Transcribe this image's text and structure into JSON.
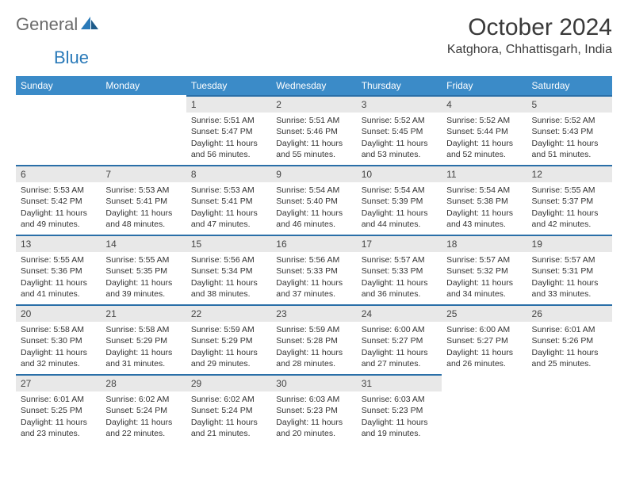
{
  "logo": {
    "word1": "General",
    "word2": "Blue"
  },
  "title": "October 2024",
  "location": "Katghora, Chhattisgarh, India",
  "colors": {
    "header_bg": "#3b8bc8",
    "header_text": "#ffffff",
    "daynum_bg": "#e8e8e8",
    "daynum_border": "#2a6fa8",
    "logo_gray": "#6a6a6a",
    "logo_blue": "#2a7ab9",
    "body_text": "#333333",
    "background": "#ffffff"
  },
  "fonts": {
    "title_size_pt": 22,
    "location_size_pt": 12,
    "th_size_pt": 9,
    "cell_size_pt": 8
  },
  "layout": {
    "columns": 7,
    "rows": 5,
    "first_day_column": 2
  },
  "weekdays": [
    "Sunday",
    "Monday",
    "Tuesday",
    "Wednesday",
    "Thursday",
    "Friday",
    "Saturday"
  ],
  "days": [
    {
      "n": 1,
      "sunrise": "5:51 AM",
      "sunset": "5:47 PM",
      "daylight": "11 hours and 56 minutes."
    },
    {
      "n": 2,
      "sunrise": "5:51 AM",
      "sunset": "5:46 PM",
      "daylight": "11 hours and 55 minutes."
    },
    {
      "n": 3,
      "sunrise": "5:52 AM",
      "sunset": "5:45 PM",
      "daylight": "11 hours and 53 minutes."
    },
    {
      "n": 4,
      "sunrise": "5:52 AM",
      "sunset": "5:44 PM",
      "daylight": "11 hours and 52 minutes."
    },
    {
      "n": 5,
      "sunrise": "5:52 AM",
      "sunset": "5:43 PM",
      "daylight": "11 hours and 51 minutes."
    },
    {
      "n": 6,
      "sunrise": "5:53 AM",
      "sunset": "5:42 PM",
      "daylight": "11 hours and 49 minutes."
    },
    {
      "n": 7,
      "sunrise": "5:53 AM",
      "sunset": "5:41 PM",
      "daylight": "11 hours and 48 minutes."
    },
    {
      "n": 8,
      "sunrise": "5:53 AM",
      "sunset": "5:41 PM",
      "daylight": "11 hours and 47 minutes."
    },
    {
      "n": 9,
      "sunrise": "5:54 AM",
      "sunset": "5:40 PM",
      "daylight": "11 hours and 46 minutes."
    },
    {
      "n": 10,
      "sunrise": "5:54 AM",
      "sunset": "5:39 PM",
      "daylight": "11 hours and 44 minutes."
    },
    {
      "n": 11,
      "sunrise": "5:54 AM",
      "sunset": "5:38 PM",
      "daylight": "11 hours and 43 minutes."
    },
    {
      "n": 12,
      "sunrise": "5:55 AM",
      "sunset": "5:37 PM",
      "daylight": "11 hours and 42 minutes."
    },
    {
      "n": 13,
      "sunrise": "5:55 AM",
      "sunset": "5:36 PM",
      "daylight": "11 hours and 41 minutes."
    },
    {
      "n": 14,
      "sunrise": "5:55 AM",
      "sunset": "5:35 PM",
      "daylight": "11 hours and 39 minutes."
    },
    {
      "n": 15,
      "sunrise": "5:56 AM",
      "sunset": "5:34 PM",
      "daylight": "11 hours and 38 minutes."
    },
    {
      "n": 16,
      "sunrise": "5:56 AM",
      "sunset": "5:33 PM",
      "daylight": "11 hours and 37 minutes."
    },
    {
      "n": 17,
      "sunrise": "5:57 AM",
      "sunset": "5:33 PM",
      "daylight": "11 hours and 36 minutes."
    },
    {
      "n": 18,
      "sunrise": "5:57 AM",
      "sunset": "5:32 PM",
      "daylight": "11 hours and 34 minutes."
    },
    {
      "n": 19,
      "sunrise": "5:57 AM",
      "sunset": "5:31 PM",
      "daylight": "11 hours and 33 minutes."
    },
    {
      "n": 20,
      "sunrise": "5:58 AM",
      "sunset": "5:30 PM",
      "daylight": "11 hours and 32 minutes."
    },
    {
      "n": 21,
      "sunrise": "5:58 AM",
      "sunset": "5:29 PM",
      "daylight": "11 hours and 31 minutes."
    },
    {
      "n": 22,
      "sunrise": "5:59 AM",
      "sunset": "5:29 PM",
      "daylight": "11 hours and 29 minutes."
    },
    {
      "n": 23,
      "sunrise": "5:59 AM",
      "sunset": "5:28 PM",
      "daylight": "11 hours and 28 minutes."
    },
    {
      "n": 24,
      "sunrise": "6:00 AM",
      "sunset": "5:27 PM",
      "daylight": "11 hours and 27 minutes."
    },
    {
      "n": 25,
      "sunrise": "6:00 AM",
      "sunset": "5:27 PM",
      "daylight": "11 hours and 26 minutes."
    },
    {
      "n": 26,
      "sunrise": "6:01 AM",
      "sunset": "5:26 PM",
      "daylight": "11 hours and 25 minutes."
    },
    {
      "n": 27,
      "sunrise": "6:01 AM",
      "sunset": "5:25 PM",
      "daylight": "11 hours and 23 minutes."
    },
    {
      "n": 28,
      "sunrise": "6:02 AM",
      "sunset": "5:24 PM",
      "daylight": "11 hours and 22 minutes."
    },
    {
      "n": 29,
      "sunrise": "6:02 AM",
      "sunset": "5:24 PM",
      "daylight": "11 hours and 21 minutes."
    },
    {
      "n": 30,
      "sunrise": "6:03 AM",
      "sunset": "5:23 PM",
      "daylight": "11 hours and 20 minutes."
    },
    {
      "n": 31,
      "sunrise": "6:03 AM",
      "sunset": "5:23 PM",
      "daylight": "11 hours and 19 minutes."
    }
  ],
  "labels": {
    "sunrise": "Sunrise:",
    "sunset": "Sunset:",
    "daylight": "Daylight:"
  }
}
